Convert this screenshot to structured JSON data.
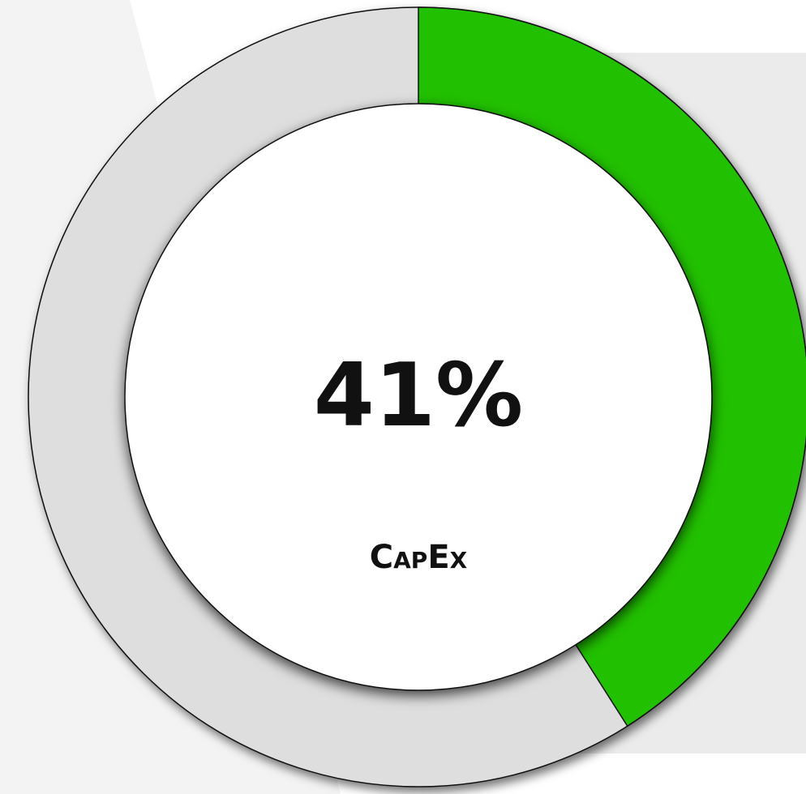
{
  "chart_data": {
    "type": "donut",
    "values": [
      41
    ],
    "value_labels": [
      "41%"
    ],
    "label": "CapEx",
    "ylim": [
      0,
      100
    ],
    "color": "#21c000",
    "track_color": "#dedede"
  }
}
